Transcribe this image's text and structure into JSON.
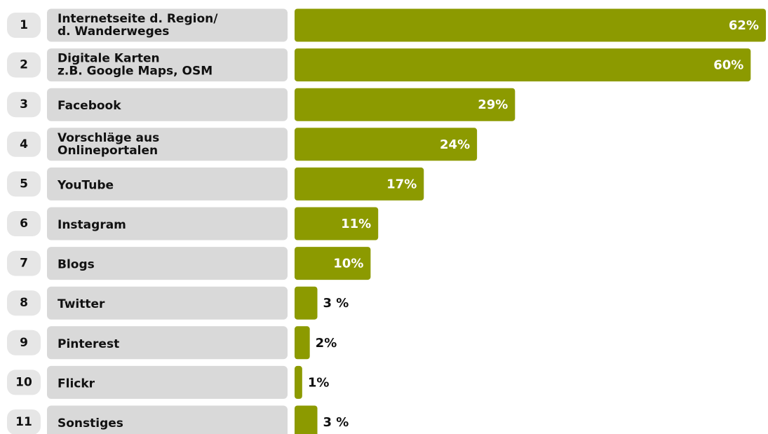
{
  "chart_data": {
    "type": "bar",
    "orientation": "horizontal",
    "color": "#8c9a00",
    "ranks": [
      1,
      2,
      3,
      4,
      5,
      6,
      7,
      8,
      9,
      10,
      11
    ],
    "categories": [
      [
        "Internetseite d. Region/",
        "d. Wanderweges"
      ],
      [
        "Digitale Karten",
        "z.B. Google Maps, OSM"
      ],
      [
        "Facebook"
      ],
      [
        "Vorschläge aus",
        "Onlineportalen"
      ],
      [
        "YouTube"
      ],
      [
        "Instagram"
      ],
      [
        "Blogs"
      ],
      [
        "Twitter"
      ],
      [
        "Pinterest"
      ],
      [
        "Flickr"
      ],
      [
        "Sonstiges"
      ]
    ],
    "values": [
      62,
      60,
      29,
      24,
      17,
      11,
      10,
      3,
      2,
      1,
      3
    ],
    "value_labels": [
      "62%",
      "60%",
      "29%",
      "24%",
      "17%",
      "11%",
      "10%",
      "3 %",
      "2%",
      "1%",
      "3 %"
    ]
  }
}
